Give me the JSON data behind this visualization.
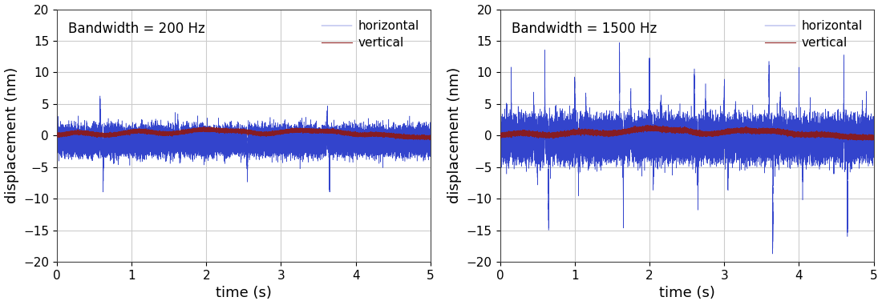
{
  "panel1_title": "Bandwidth = 200 Hz",
  "panel2_title": "Bandwidth = 1500 Hz",
  "xlabel": "time (s)",
  "ylabel": "displacement (nm)",
  "xlim": [
    0,
    5
  ],
  "ylim": [
    -20,
    20
  ],
  "yticks": [
    -20,
    -15,
    -10,
    -5,
    0,
    5,
    10,
    15,
    20
  ],
  "xticks": [
    0,
    1,
    2,
    3,
    4,
    5
  ],
  "blue_color": "#3344CC",
  "red_color": "#8B1A1A",
  "legend_labels": [
    "horizontal",
    "vertical"
  ],
  "n_points": 50000,
  "duration": 5.0,
  "seed1": 42,
  "seed2": 99,
  "title_fontsize": 12,
  "axis_label_fontsize": 13,
  "tick_fontsize": 11,
  "legend_fontsize": 11,
  "figsize": [
    11.0,
    3.81
  ],
  "dpi": 100,
  "background_color": "#ffffff",
  "grid_color": "#cccccc",
  "grid_linewidth": 0.8
}
